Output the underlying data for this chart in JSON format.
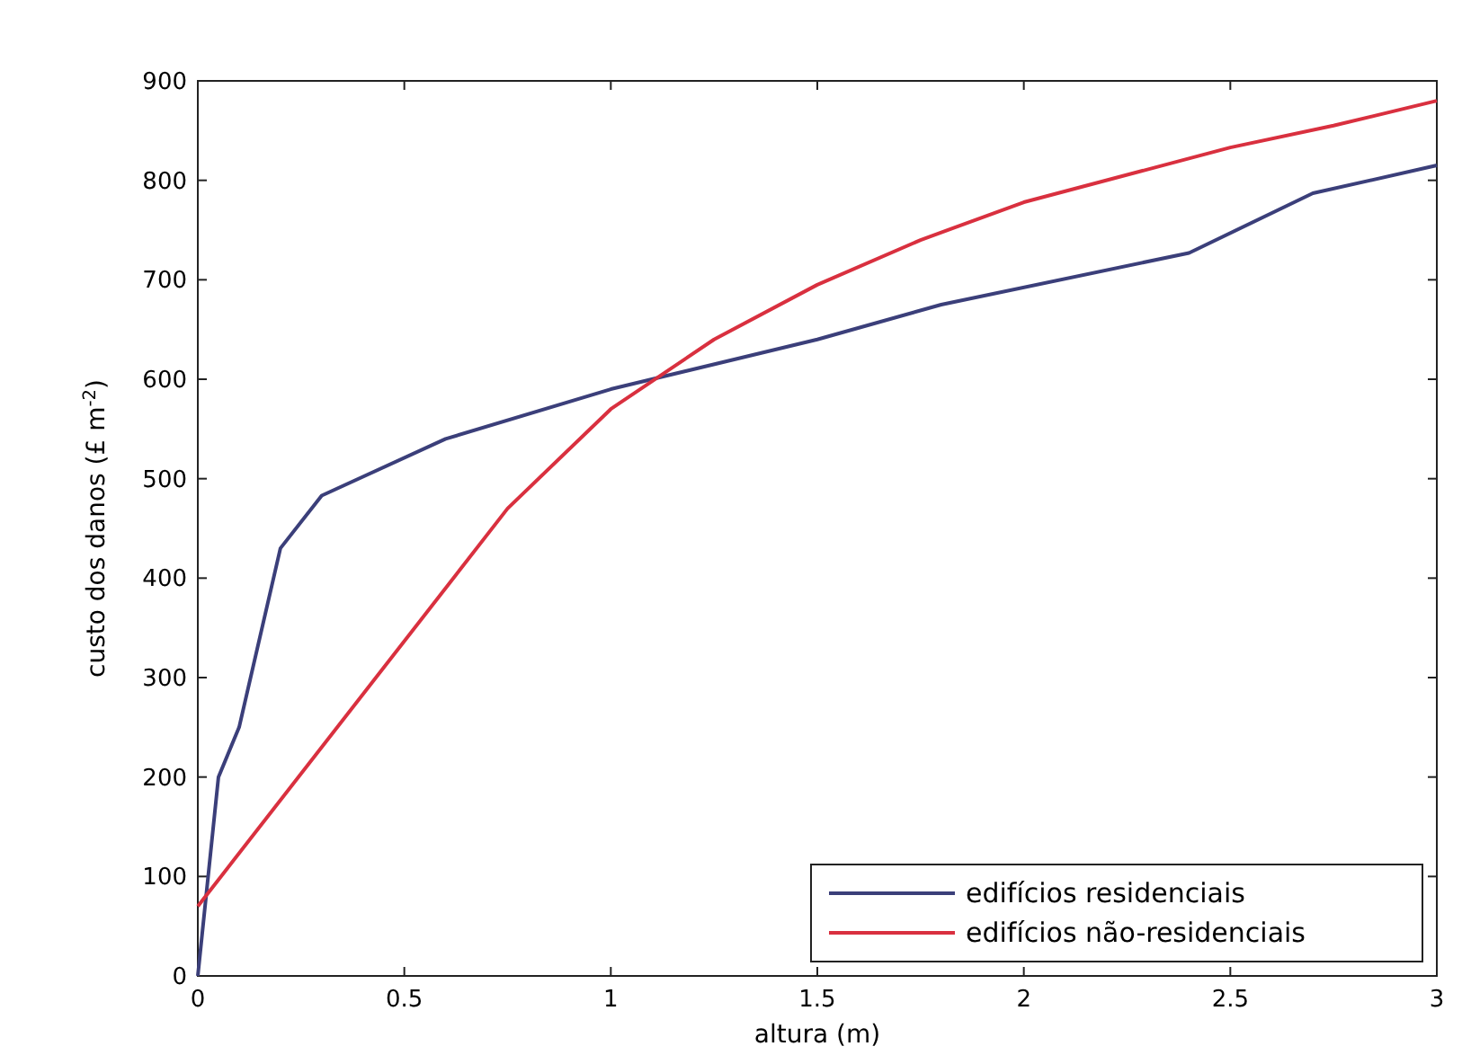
{
  "chart_data": {
    "type": "line",
    "xlabel": "altura (m)",
    "ylabel": "custo dos danos (£ m$^{-2}$)",
    "xlim": [
      0,
      3
    ],
    "xticks": [
      0,
      0.5,
      1,
      1.5,
      2,
      2.5,
      3
    ],
    "ylim": [
      0,
      900
    ],
    "yticks": [
      0,
      100,
      200,
      300,
      400,
      500,
      600,
      700,
      800,
      900
    ],
    "grid": false,
    "legend": "bottom right",
    "marker": "none",
    "line_style": "solid",
    "series": [
      {
        "name": "edifícios residenciais",
        "color": "#3b3f7a",
        "x": [
          0,
          0.05,
          0.1,
          0.2,
          0.3,
          0.6,
          1,
          1.5,
          1.8,
          2.4,
          2.7,
          3
        ],
        "values": [
          0,
          200,
          250,
          430,
          483,
          540,
          590,
          640,
          675,
          727,
          787,
          815
        ]
      },
      {
        "name": "edifícios não-residenciais",
        "color": "#d9303f",
        "x": [
          0,
          0.75,
          1,
          1.25,
          1.5,
          1.75,
          2,
          2.5,
          2.75,
          3
        ],
        "values": [
          70,
          470,
          570,
          640,
          695,
          740,
          778,
          833,
          855,
          880
        ]
      }
    ]
  }
}
